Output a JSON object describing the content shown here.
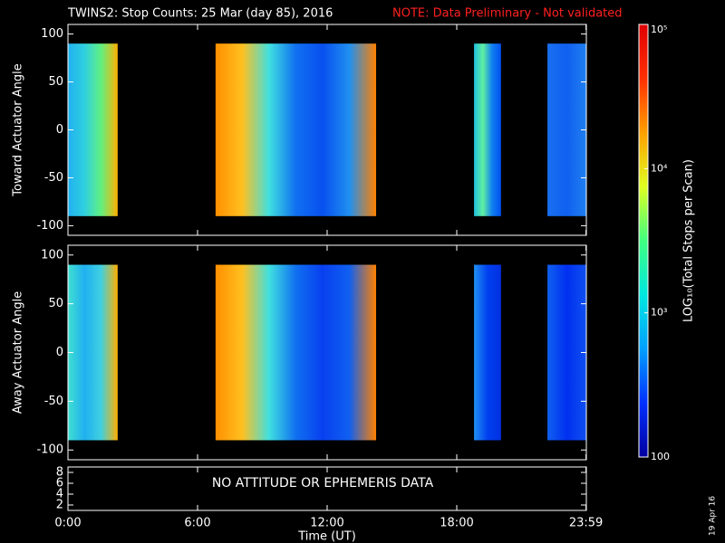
{
  "title": "TWINS2: Stop Counts: 25 Mar (day  85), 2016",
  "note": "NOTE: Data Preliminary - Not validated",
  "date_stamp": "19 Apr 16",
  "colorbar": {
    "label": "LOG₁₀(Total Stops per Scan)",
    "log": true,
    "ylim": [
      100,
      100000
    ],
    "yticks": [
      100,
      {
        "value": 1000,
        "label": "10³"
      },
      {
        "value": 10000,
        "label": "10⁴"
      },
      {
        "value": 100000,
        "label": "10⁵"
      }
    ],
    "colors": [
      "#0000a0",
      "#0030ff",
      "#00a0ff",
      "#00e8e0",
      "#40ff80",
      "#e0ff20",
      "#ffa000",
      "#ff3000",
      "#e00000"
    ]
  },
  "chart_data": [
    {
      "type": "heatmap",
      "ylabel": "Toward Actuator Angle",
      "ylim": [
        -110,
        110
      ],
      "yticks": [
        100,
        50,
        0,
        -50,
        -100
      ],
      "xlim": [
        0,
        1440
      ],
      "xticks": [
        0,
        360,
        720,
        1080,
        1439
      ],
      "segments": [
        {
          "x": [
            0,
            138
          ],
          "y": [
            -90,
            90
          ],
          "colors": [
            "#20b0f0",
            "#30d0e0",
            "#60f080",
            "#ffb000"
          ]
        },
        {
          "x": [
            410,
            856
          ],
          "y": [
            -90,
            90
          ],
          "colors": [
            "#ff9000",
            "#ffc020",
            "#40e0e0",
            "#1070f0",
            "#0850f0",
            "#2090f0",
            "#ff8000"
          ]
        },
        {
          "x": [
            1128,
            1203
          ],
          "y": [
            -90,
            90
          ],
          "colors": [
            "#20c0e0",
            "#60f0a0",
            "#1080f0",
            "#0050f0"
          ]
        },
        {
          "x": [
            1332,
            1440
          ],
          "y": [
            -90,
            90
          ],
          "colors": [
            "#1870f0",
            "#1060f0",
            "#2080f0"
          ]
        }
      ]
    },
    {
      "type": "heatmap",
      "ylabel": "Away Actuator Angle",
      "ylim": [
        -110,
        110
      ],
      "yticks": [
        100,
        50,
        0,
        -50,
        -100
      ],
      "xlim": [
        0,
        1440
      ],
      "xticks": [
        0,
        360,
        720,
        1080,
        1439
      ],
      "segments": [
        {
          "x": [
            0,
            138
          ],
          "y": [
            -90,
            90
          ],
          "colors": [
            "#40e0d0",
            "#20b0f0",
            "#40d0e0",
            "#ffb000"
          ]
        },
        {
          "x": [
            410,
            856
          ],
          "y": [
            -90,
            90
          ],
          "colors": [
            "#ff9000",
            "#ffc020",
            "#40e0e0",
            "#1070f0",
            "#0840f0",
            "#1060f0",
            "#ff8000"
          ]
        },
        {
          "x": [
            1128,
            1203
          ],
          "y": [
            -90,
            90
          ],
          "colors": [
            "#2090f0",
            "#0040f0",
            "#0030e0"
          ]
        },
        {
          "x": [
            1332,
            1440
          ],
          "y": [
            -90,
            90
          ],
          "colors": [
            "#1060f0",
            "#0030f0",
            "#1050f0"
          ]
        }
      ]
    },
    {
      "type": "text",
      "ylim": [
        1,
        9
      ],
      "yticks": [
        2,
        4,
        6,
        8
      ],
      "xlim": [
        0,
        1440
      ],
      "xticks": [
        {
          "value": 0,
          "label": "0:00"
        },
        {
          "value": 360,
          "label": "6:00"
        },
        {
          "value": 720,
          "label": "12:00"
        },
        {
          "value": 1080,
          "label": "18:00"
        },
        {
          "value": 1439,
          "label": "23:59"
        }
      ],
      "annotation": "NO ATTITUDE OR EPHEMERIS DATA",
      "xlabel": "Time (UT)"
    }
  ]
}
